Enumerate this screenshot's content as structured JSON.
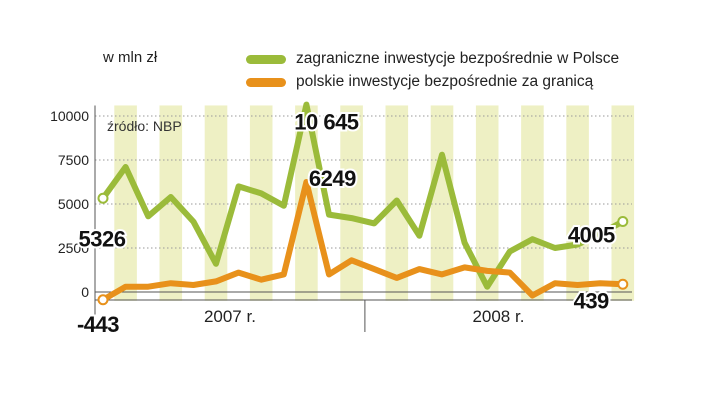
{
  "chart_data": {
    "type": "line",
    "unit_label": "w mln zł",
    "source": "źródło: NBP",
    "colors": {
      "zib": "#9bbb3a",
      "pib": "#e8911b",
      "stripe": "#eef0c4",
      "axis": "#555555"
    },
    "ylim": [
      -500,
      10600
    ],
    "yticks": [
      0,
      2500,
      5000,
      7500,
      10000
    ],
    "ytick_labels": [
      "0",
      "2500",
      "5000",
      "7500",
      "10000"
    ],
    "period_labels": [
      "2007 r.",
      "2008 r."
    ],
    "months": 24,
    "series": [
      {
        "key": "zib",
        "name": "zagraniczne inwestycje bezpośrednie w Polsce",
        "values": [
          5326,
          7100,
          4300,
          5400,
          4000,
          1600,
          6000,
          5600,
          4900,
          10645,
          4400,
          4200,
          3900,
          5200,
          3200,
          7800,
          2800,
          300,
          2300,
          3000,
          2500,
          2700,
          3300,
          4005
        ]
      },
      {
        "key": "pib",
        "name": "polskie inwestycje bezpośrednie za granicą",
        "values": [
          -443,
          300,
          300,
          500,
          400,
          600,
          1100,
          700,
          1000,
          6249,
          1000,
          1800,
          1300,
          800,
          1300,
          1000,
          1400,
          1200,
          1100,
          -200,
          500,
          400,
          500,
          439
        ]
      }
    ],
    "annotations": [
      {
        "text": "5326",
        "series": "zib",
        "index": 0
      },
      {
        "text": "10 645",
        "series": "zib",
        "index": 9
      },
      {
        "text": "6249",
        "series": "pib",
        "index": 9
      },
      {
        "text": "4005",
        "series": "zib",
        "index": 23
      },
      {
        "text": "-443",
        "series": "pib",
        "index": 0
      },
      {
        "text": "439",
        "series": "pib",
        "index": 23
      }
    ]
  }
}
